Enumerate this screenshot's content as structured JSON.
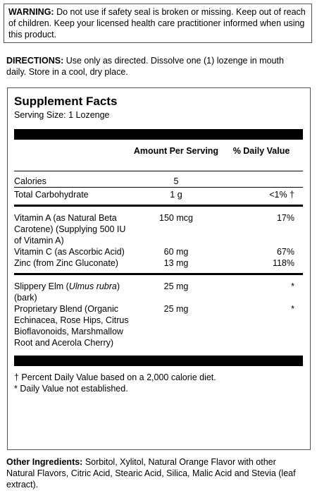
{
  "warning": {
    "label": "WARNING:",
    "text": "Do not use if safety seal is broken or missing. Keep out of reach of children. Keep your licensed health care practitioner informed when using this product."
  },
  "directions": {
    "label": "DIRECTIONS:",
    "text": "Use only as directed. Dissolve one (1) lozenge in mouth daily.  Store in a cool, dry place."
  },
  "facts": {
    "title": "Supplement Facts",
    "serving": "Serving Size: 1 Lozenge",
    "header": {
      "amount": "Amount Per Serving",
      "dv": "% Daily Value"
    },
    "groups": [
      [
        {
          "name": [
            "Calories"
          ],
          "amount": "5"
        },
        {
          "name": [
            "Total Carbohydrate"
          ],
          "amount": "1 g",
          "dv": "<1% †"
        }
      ],
      [
        {
          "name": [
            "Vitamin A (as Natural Beta Carotene) (Supplying 500 IU of Vitamin A)"
          ],
          "amount": "150 mcg",
          "dv": "17%"
        },
        {
          "name": [
            "Vitamin C (as Ascorbic Acid)"
          ],
          "amount": "60 mg",
          "dv": "67%"
        },
        {
          "name": [
            "Zinc (from Zinc Gluconate)"
          ],
          "amount": "13 mg",
          "dv": "118%"
        }
      ],
      [
        {
          "name": [
            "Slippery Elm (",
            "Ulmus rubra",
            ") (bark)"
          ],
          "amount": "25 mg",
          "dv": "*"
        },
        {
          "name": [
            "Proprietary Blend (Organic Echinacea, Rose Hips, Citrus Bioflavonoids, Marshmallow Root and Acerola Cherry)"
          ],
          "amount": "25 mg",
          "dv": "*"
        }
      ]
    ],
    "footnotes": [
      "† Percent Daily Value based on a 2,000 calorie diet.",
      "* Daily Value not established."
    ]
  },
  "other": {
    "label": "Other Ingredients:",
    "text": "Sorbitol, Xylitol, Natural Orange Flavor with other Natural Flavors, Citric Acid, Stearic Acid, Silica, Malic Acid and Stevia (leaf extract)."
  }
}
